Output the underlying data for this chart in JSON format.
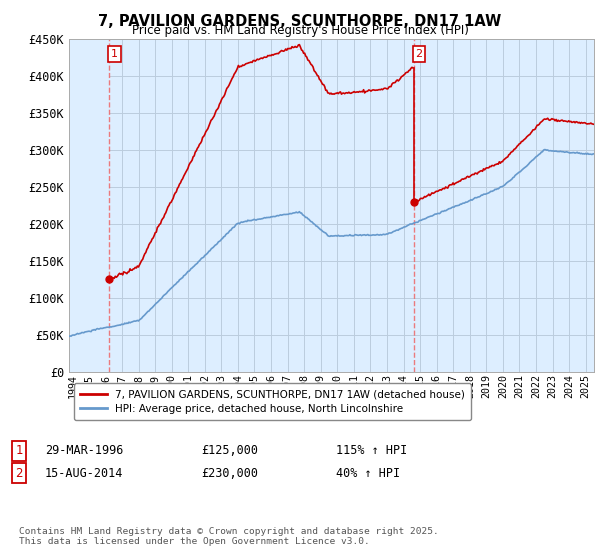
{
  "title": "7, PAVILION GARDENS, SCUNTHORPE, DN17 1AW",
  "subtitle": "Price paid vs. HM Land Registry's House Price Index (HPI)",
  "legend_property": "7, PAVILION GARDENS, SCUNTHORPE, DN17 1AW (detached house)",
  "legend_hpi": "HPI: Average price, detached house, North Lincolnshire",
  "footer": "Contains HM Land Registry data © Crown copyright and database right 2025.\nThis data is licensed under the Open Government Licence v3.0.",
  "transaction1_date": "29-MAR-1996",
  "transaction1_price": 125000,
  "transaction1_hpi_pct": "115% ↑ HPI",
  "transaction2_date": "15-AUG-2014",
  "transaction2_price": 230000,
  "transaction2_hpi_pct": "40% ↑ HPI",
  "ylim": [
    0,
    450000
  ],
  "yticks": [
    0,
    50000,
    100000,
    150000,
    200000,
    250000,
    300000,
    350000,
    400000,
    450000
  ],
  "xlim_start": 1993.8,
  "xlim_end": 2025.5,
  "color_property": "#cc0000",
  "color_hpi": "#6699cc",
  "color_grid": "#bbccdd",
  "color_dashed": "#ee6666",
  "chart_bg": "#ddeeff",
  "background_color": "#ffffff",
  "transaction1_x": 1996.24,
  "transaction2_x": 2014.62
}
